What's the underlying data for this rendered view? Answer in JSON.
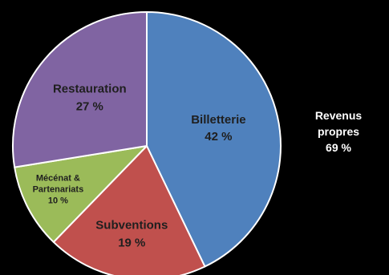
{
  "chart_data": {
    "type": "pie",
    "title": "",
    "slices": [
      {
        "name": "Billetterie",
        "value": 42,
        "label_lines": [
          "Billetterie",
          "42 %"
        ],
        "color": "#4f81bd",
        "text_color": "#1f1f1f"
      },
      {
        "name": "Subventions",
        "value": 19,
        "label_lines": [
          "Subventions",
          "19 %"
        ],
        "color": "#c0504d",
        "text_color": "#1f1f1f"
      },
      {
        "name": "Mécénat & Partenariats",
        "value": 10,
        "label_lines": [
          "Mécénat &",
          "Partenariats",
          "10 %"
        ],
        "color": "#9bbb59",
        "text_color": "#1f1f1f"
      },
      {
        "name": "Restauration",
        "value": 27,
        "label_lines": [
          "Restauration",
          "27 %"
        ],
        "color": "#8064a2",
        "text_color": "#1f1f1f"
      }
    ],
    "start_angle_deg": 0,
    "direction": "clockwise",
    "legend": "none",
    "annotation": {
      "lines": [
        "Revenus",
        "propres",
        "69 %"
      ],
      "color": "#ffffff"
    }
  }
}
